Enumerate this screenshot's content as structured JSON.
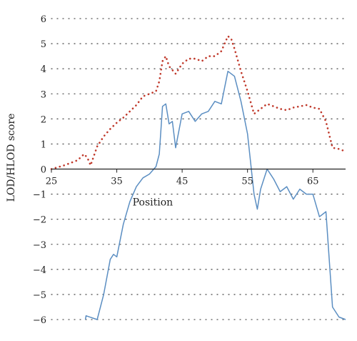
{
  "chart_data": {
    "type": "line",
    "xlabel": "Position",
    "ylabel": "LOD/HLOD score",
    "xlim": [
      25,
      70
    ],
    "ylim": [
      -6,
      6
    ],
    "xticks": [
      25,
      35,
      45,
      55,
      65
    ],
    "yticks": [
      -6,
      -5,
      -4,
      -3,
      -2,
      -1,
      0,
      1,
      2,
      3,
      4,
      5,
      6
    ],
    "ytick_labels": [
      "−6",
      "−5",
      "−4",
      "−3",
      "−2",
      "−1",
      "0",
      "1",
      "2",
      "3",
      "4",
      "5",
      "6"
    ],
    "grid": "dotted horizontal",
    "series": [
      {
        "color": "#c0392b",
        "style": "dotted",
        "x": [
          25.0,
          27.0,
          29.0,
          30.0,
          30.5,
          31.0,
          32.0,
          33.0,
          34.0,
          35.0,
          36.0,
          37.0,
          38.0,
          39.0,
          40.0,
          41.0,
          41.5,
          42.0,
          42.5,
          43.0,
          43.5,
          44.0,
          45.0,
          46.0,
          47.0,
          48.0,
          49.0,
          50.0,
          51.0,
          52.0,
          52.5,
          53.0,
          54.0,
          55.0,
          56.0,
          57.0,
          58.0,
          59.0,
          60.0,
          61.0,
          62.0,
          63.0,
          64.0,
          65.0,
          66.0,
          67.0,
          68.0,
          69.0,
          70.0
        ],
        "y": [
          0.0,
          0.15,
          0.35,
          0.6,
          0.45,
          0.15,
          0.9,
          1.3,
          1.6,
          1.85,
          2.05,
          2.3,
          2.55,
          2.9,
          3.0,
          3.1,
          3.5,
          4.3,
          4.5,
          4.1,
          3.95,
          3.8,
          4.2,
          4.4,
          4.4,
          4.3,
          4.5,
          4.5,
          4.7,
          5.3,
          5.2,
          4.8,
          3.9,
          3.1,
          2.2,
          2.4,
          2.6,
          2.5,
          2.4,
          2.35,
          2.45,
          2.5,
          2.55,
          2.45,
          2.4,
          1.9,
          0.85,
          0.8,
          0.7
        ]
      },
      {
        "color": "#5b8ec2",
        "style": "solid",
        "x": [
          30.2,
          30.3,
          32.0,
          33.0,
          34.0,
          34.5,
          35.0,
          36.0,
          37.0,
          38.0,
          39.0,
          40.0,
          41.0,
          41.5,
          42.0,
          42.5,
          43.0,
          43.5,
          44.0,
          45.0,
          46.0,
          47.0,
          48.0,
          49.0,
          50.0,
          51.0,
          52.0,
          53.0,
          54.0,
          55.0,
          56.0,
          56.5,
          57.0,
          58.0,
          59.0,
          60.0,
          61.0,
          62.0,
          63.0,
          64.0,
          65.0,
          66.0,
          67.0,
          68.0,
          69.0,
          70.0
        ],
        "y": [
          -6.0,
          -5.85,
          -6.0,
          -5.0,
          -3.6,
          -3.4,
          -3.5,
          -2.2,
          -1.3,
          -0.7,
          -0.35,
          -0.2,
          0.1,
          0.6,
          2.5,
          2.6,
          1.8,
          1.9,
          0.85,
          2.2,
          2.3,
          1.9,
          2.2,
          2.3,
          2.7,
          2.6,
          3.9,
          3.7,
          2.7,
          1.4,
          -1.0,
          -1.6,
          -0.8,
          0.0,
          -0.4,
          -0.9,
          -0.7,
          -1.2,
          -0.8,
          -1.0,
          -1.0,
          -1.9,
          -1.7,
          -5.5,
          -5.9,
          -6.0
        ]
      }
    ]
  }
}
